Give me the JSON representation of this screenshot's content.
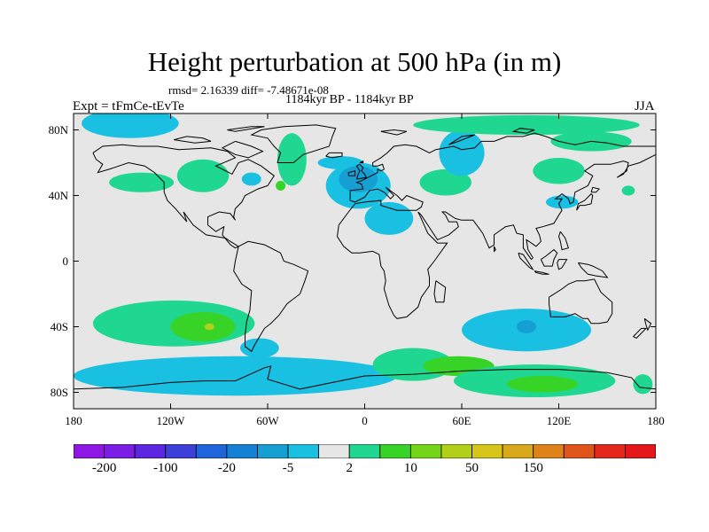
{
  "title": "Height perturbation at 500 hPa (in m)",
  "stats": "rmsd= 2.16339 diff= -7.48671e-08",
  "period": "1184kyr BP - 1184kyr BP",
  "expt": "Expt = tFmCe-tEvTe",
  "season": "JJA",
  "axes": {
    "x_ticks": [
      "180",
      "120W",
      "60W",
      "0",
      "60E",
      "120E",
      "180"
    ],
    "y_ticks": [
      "80N",
      "40N",
      "0",
      "40S",
      "80S"
    ]
  },
  "colorbar": {
    "colors": [
      "#8f17e6",
      "#7a1ee6",
      "#5d26e1",
      "#3e3fd9",
      "#2064db",
      "#1581d4",
      "#159fd3",
      "#19c0e1",
      "#e6e6e6",
      "#1fd790",
      "#37d327",
      "#75d51a",
      "#b2d01a",
      "#d8c51a",
      "#d6a81a",
      "#de831a",
      "#e0561a",
      "#e4281a",
      "#e4171a"
    ],
    "labels": [
      "-200",
      "-100",
      "-20",
      "-5",
      "2",
      "10",
      "50",
      "150"
    ],
    "label_after_box": [
      1,
      3,
      5,
      7,
      9,
      11,
      13,
      15
    ]
  },
  "chart_data": {
    "type": "heatmap",
    "title": "Height perturbation at 500 hPa (in m)",
    "projection": "cylindrical equidistant",
    "lon_range": [
      -180,
      180
    ],
    "lat_range": [
      -90,
      90
    ],
    "levels": [
      "-200",
      "-100",
      "-20",
      "-5",
      "2",
      "10",
      "50",
      "150"
    ],
    "features": [
      {
        "lon": -145,
        "lat": 84,
        "rx": 30,
        "ry": 9,
        "color": "#19c0e1"
      },
      {
        "lon": -138,
        "lat": 48,
        "rx": 20,
        "ry": 6,
        "color": "#1fd790"
      },
      {
        "lon": -100,
        "lat": 52,
        "rx": 16,
        "ry": 10,
        "color": "#1fd790"
      },
      {
        "lon": -70,
        "lat": 50,
        "rx": 6,
        "ry": 4,
        "color": "#19c0e1"
      },
      {
        "lon": -45,
        "lat": 62,
        "rx": 9,
        "ry": 16,
        "color": "#1fd790"
      },
      {
        "lon": -52,
        "lat": 46,
        "rx": 3,
        "ry": 3,
        "color": "#37d327"
      },
      {
        "lon": -15,
        "lat": 60,
        "rx": 14,
        "ry": 4,
        "color": "#19c0e1"
      },
      {
        "lon": -4,
        "lat": 46,
        "rx": 20,
        "ry": 14,
        "color": "#19c0e1"
      },
      {
        "lon": -4,
        "lat": 50,
        "rx": 12,
        "ry": 8,
        "color": "#159fd3"
      },
      {
        "lon": 15,
        "lat": 26,
        "rx": 15,
        "ry": 10,
        "color": "#19c0e1"
      },
      {
        "lon": 50,
        "lat": 48,
        "rx": 16,
        "ry": 8,
        "color": "#1fd790"
      },
      {
        "lon": 60,
        "lat": 66,
        "rx": 14,
        "ry": 14,
        "color": "#19c0e1"
      },
      {
        "lon": 100,
        "lat": 83,
        "rx": 70,
        "ry": 6,
        "color": "#1fd790"
      },
      {
        "lon": 140,
        "lat": 73,
        "rx": 25,
        "ry": 6,
        "color": "#1fd790"
      },
      {
        "lon": 120,
        "lat": 55,
        "rx": 16,
        "ry": 8,
        "color": "#1fd790"
      },
      {
        "lon": 122,
        "lat": 36,
        "rx": 10,
        "ry": 4,
        "color": "#19c0e1"
      },
      {
        "lon": 163,
        "lat": 43,
        "rx": 4,
        "ry": 3,
        "color": "#1fd790"
      },
      {
        "lon": -118,
        "lat": -38,
        "rx": 50,
        "ry": 14,
        "color": "#1fd790"
      },
      {
        "lon": -100,
        "lat": -40,
        "rx": 20,
        "ry": 9,
        "color": "#37d327"
      },
      {
        "lon": -96,
        "lat": -40,
        "rx": 3,
        "ry": 2,
        "color": "#b2d01a"
      },
      {
        "lon": -65,
        "lat": -53,
        "rx": 12,
        "ry": 6,
        "color": "#19c0e1"
      },
      {
        "lon": -80,
        "lat": -70,
        "rx": 100,
        "ry": 12,
        "color": "#19c0e1"
      },
      {
        "lon": 30,
        "lat": -63,
        "rx": 25,
        "ry": 10,
        "color": "#1fd790"
      },
      {
        "lon": 58,
        "lat": -64,
        "rx": 22,
        "ry": 6,
        "color": "#37d327"
      },
      {
        "lon": 100,
        "lat": -42,
        "rx": 40,
        "ry": 13,
        "color": "#19c0e1"
      },
      {
        "lon": 100,
        "lat": -40,
        "rx": 6,
        "ry": 4,
        "color": "#159fd3"
      },
      {
        "lon": 105,
        "lat": -73,
        "rx": 50,
        "ry": 10,
        "color": "#1fd790"
      },
      {
        "lon": 110,
        "lat": -75,
        "rx": 22,
        "ry": 5,
        "color": "#37d327"
      },
      {
        "lon": 172,
        "lat": -75,
        "rx": 6,
        "ry": 6,
        "color": "#1fd790"
      }
    ]
  }
}
